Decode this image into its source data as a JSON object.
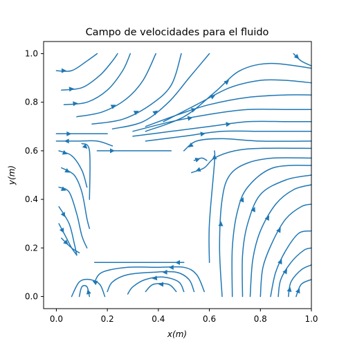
{
  "chart_data": {
    "type": "streamplot",
    "title": "Campo de velocidades para el fluido",
    "xlabel": "x(m)",
    "ylabel": "y(m)",
    "xlim": [
      -0.05,
      1.0
    ],
    "ylim": [
      -0.05,
      1.05
    ],
    "xticks": [
      0.0,
      0.2,
      0.4,
      0.6,
      0.8,
      1.0
    ],
    "yticks": [
      0.0,
      0.2,
      0.4,
      0.6,
      0.8,
      1.0
    ],
    "xtick_labels": [
      "0.0",
      "0.2",
      "0.4",
      "0.6",
      "0.8",
      "1.0"
    ],
    "ytick_labels": [
      "0.0",
      "0.2",
      "0.4",
      "0.6",
      "0.8",
      "1.0"
    ],
    "color": "#1f77b4",
    "grid": false,
    "obstacle": {
      "x": [
        0.14,
        0.6
      ],
      "y": [
        0.14,
        0.6
      ]
    },
    "streamlines": [
      {
        "points": [
          [
            0.0,
            0.93
          ],
          [
            0.06,
            0.93
          ],
          [
            0.12,
            0.97
          ],
          [
            0.16,
            1.0
          ]
        ],
        "arrow": 1
      },
      {
        "points": [
          [
            0.02,
            0.85
          ],
          [
            0.1,
            0.86
          ],
          [
            0.17,
            0.91
          ],
          [
            0.22,
            0.97
          ],
          [
            0.24,
            1.0
          ]
        ],
        "arrow": 1
      },
      {
        "points": [
          [
            0.03,
            0.79
          ],
          [
            0.12,
            0.8
          ],
          [
            0.2,
            0.85
          ],
          [
            0.26,
            0.93
          ],
          [
            0.29,
            1.0
          ]
        ],
        "arrow": 1
      },
      {
        "points": [
          [
            0.08,
            0.74
          ],
          [
            0.18,
            0.76
          ],
          [
            0.27,
            0.81
          ],
          [
            0.34,
            0.89
          ],
          [
            0.39,
            1.0
          ]
        ],
        "arrow": 2
      },
      {
        "points": [
          [
            0.14,
            0.71
          ],
          [
            0.26,
            0.73
          ],
          [
            0.37,
            0.79
          ],
          [
            0.45,
            0.87
          ],
          [
            0.49,
            1.0
          ]
        ],
        "arrow": 2
      },
      {
        "points": [
          [
            0.22,
            0.69
          ],
          [
            0.34,
            0.72
          ],
          [
            0.44,
            0.8
          ],
          [
            0.52,
            0.9
          ],
          [
            0.6,
            1.0
          ]
        ],
        "arrow": 2
      },
      {
        "points": [
          [
            0.35,
            0.68
          ],
          [
            0.5,
            0.74
          ],
          [
            0.62,
            0.84
          ],
          [
            0.72,
            0.93
          ],
          [
            0.84,
            0.96
          ],
          [
            1.0,
            0.94
          ]
        ],
        "arrow": 3
      },
      {
        "points": [
          [
            0.42,
            0.72
          ],
          [
            0.55,
            0.79
          ],
          [
            0.68,
            0.86
          ],
          [
            0.8,
            0.89
          ],
          [
            0.9,
            0.89
          ],
          [
            1.0,
            0.88
          ]
        ],
        "arrow": 2
      },
      {
        "points": [
          [
            0.35,
            0.7
          ],
          [
            0.48,
            0.75
          ],
          [
            0.6,
            0.79
          ],
          [
            0.75,
            0.82
          ],
          [
            0.9,
            0.83
          ],
          [
            1.0,
            0.83
          ]
        ],
        "arrow": 2
      },
      {
        "points": [
          [
            0.3,
            0.68
          ],
          [
            0.45,
            0.72
          ],
          [
            0.6,
            0.75
          ],
          [
            0.75,
            0.77
          ],
          [
            0.9,
            0.77
          ],
          [
            1.0,
            0.77
          ]
        ],
        "arrow": 2
      },
      {
        "points": [
          [
            0.3,
            0.66
          ],
          [
            0.45,
            0.68
          ],
          [
            0.6,
            0.7
          ],
          [
            0.75,
            0.72
          ],
          [
            0.9,
            0.72
          ],
          [
            1.0,
            0.72
          ]
        ],
        "arrow": 3
      },
      {
        "points": [
          [
            0.35,
            0.64
          ],
          [
            0.5,
            0.66
          ],
          [
            0.65,
            0.68
          ],
          [
            0.8,
            0.68
          ],
          [
            1.0,
            0.68
          ]
        ],
        "arrow": 2
      },
      {
        "points": [
          [
            0.0,
            0.67
          ],
          [
            0.1,
            0.67
          ],
          [
            0.2,
            0.67
          ]
        ],
        "arrow": 1
      },
      {
        "points": [
          [
            0.0,
            0.64
          ],
          [
            0.08,
            0.64
          ],
          [
            0.16,
            0.64
          ],
          [
            0.22,
            0.62
          ]
        ],
        "arrow": -1
      },
      {
        "points": [
          [
            0.16,
            0.6
          ],
          [
            0.28,
            0.6
          ],
          [
            0.45,
            0.6
          ]
        ],
        "arrow": 1
      },
      {
        "points": [
          [
            0.5,
            0.6
          ],
          [
            0.55,
            0.64
          ],
          [
            0.65,
            0.65
          ],
          [
            0.8,
            0.64
          ],
          [
            1.0,
            0.64
          ]
        ],
        "arrow": -1
      },
      {
        "points": [
          [
            0.53,
            0.51
          ],
          [
            0.58,
            0.53
          ],
          [
            0.62,
            0.57
          ],
          [
            0.7,
            0.6
          ],
          [
            0.8,
            0.61
          ],
          [
            1.0,
            0.61
          ]
        ],
        "arrow": -1
      },
      {
        "points": [
          [
            0.54,
            0.56
          ],
          [
            0.57,
            0.57
          ],
          [
            0.59,
            0.56
          ]
        ],
        "arrow": 1
      },
      {
        "points": [
          [
            0.01,
            0.6
          ],
          [
            0.06,
            0.58
          ],
          [
            0.1,
            0.52
          ],
          [
            0.12,
            0.45
          ]
        ],
        "arrow": 1
      },
      {
        "points": [
          [
            0.1,
            0.63
          ],
          [
            0.13,
            0.6
          ],
          [
            0.13,
            0.4
          ]
        ],
        "arrow": 1
      },
      {
        "points": [
          [
            0.02,
            0.53
          ],
          [
            0.07,
            0.5
          ],
          [
            0.1,
            0.43
          ],
          [
            0.12,
            0.32
          ],
          [
            0.13,
            0.28
          ]
        ],
        "arrow": 1
      },
      {
        "points": [
          [
            0.01,
            0.45
          ],
          [
            0.05,
            0.43
          ],
          [
            0.08,
            0.34
          ],
          [
            0.1,
            0.25
          ],
          [
            0.12,
            0.2
          ]
        ],
        "arrow": 1
      },
      {
        "points": [
          [
            0.01,
            0.37
          ],
          [
            0.05,
            0.3
          ],
          [
            0.07,
            0.22
          ],
          [
            0.08,
            0.17
          ]
        ],
        "arrow": 1
      },
      {
        "points": [
          [
            0.01,
            0.3
          ],
          [
            0.04,
            0.24
          ],
          [
            0.06,
            0.2
          ],
          [
            0.08,
            0.17
          ]
        ],
        "arrow": 1
      },
      {
        "points": [
          [
            0.02,
            0.24
          ],
          [
            0.06,
            0.2
          ],
          [
            0.09,
            0.18
          ]
        ],
        "arrow": 1
      },
      {
        "points": [
          [
            0.5,
            0.14
          ],
          [
            0.45,
            0.14
          ],
          [
            0.35,
            0.14
          ],
          [
            0.15,
            0.14
          ]
        ],
        "arrow": 1
      },
      {
        "points": [
          [
            0.58,
            0.02
          ],
          [
            0.55,
            0.09
          ],
          [
            0.5,
            0.12
          ],
          [
            0.4,
            0.12
          ],
          [
            0.28,
            0.12
          ],
          [
            0.18,
            0.1
          ],
          [
            0.15,
            0.06
          ]
        ],
        "arrow": 3
      },
      {
        "points": [
          [
            0.54,
            0.02
          ],
          [
            0.52,
            0.07
          ],
          [
            0.47,
            0.1
          ],
          [
            0.38,
            0.1
          ],
          [
            0.28,
            0.09
          ],
          [
            0.22,
            0.06
          ],
          [
            0.2,
            0.02
          ]
        ],
        "arrow": 3
      },
      {
        "points": [
          [
            0.5,
            0.02
          ],
          [
            0.48,
            0.06
          ],
          [
            0.42,
            0.08
          ],
          [
            0.35,
            0.07
          ],
          [
            0.3,
            0.04
          ],
          [
            0.28,
            0.01
          ]
        ],
        "arrow": 3
      },
      {
        "points": [
          [
            0.47,
            0.02
          ],
          [
            0.44,
            0.05
          ],
          [
            0.38,
            0.05
          ],
          [
            0.35,
            0.02
          ]
        ],
        "arrow": 2
      },
      {
        "points": [
          [
            0.19,
            0.0
          ],
          [
            0.17,
            0.05
          ],
          [
            0.13,
            0.07
          ],
          [
            0.09,
            0.06
          ],
          [
            0.06,
            0.0
          ]
        ],
        "arrow": 2
      },
      {
        "points": [
          [
            0.13,
            0.0
          ],
          [
            0.12,
            0.04
          ],
          [
            0.1,
            0.04
          ],
          [
            0.09,
            0.0
          ]
        ],
        "arrow": 1
      },
      {
        "points": [
          [
            0.62,
            0.6
          ],
          [
            0.62,
            0.55
          ],
          [
            0.6,
            0.3
          ],
          [
            0.6,
            0.14
          ]
        ],
        "arrow": -1
      },
      {
        "points": [
          [
            0.65,
            0.0
          ],
          [
            0.64,
            0.2
          ],
          [
            0.65,
            0.4
          ],
          [
            0.68,
            0.5
          ],
          [
            0.75,
            0.55
          ],
          [
            0.85,
            0.57
          ],
          [
            1.0,
            0.57
          ]
        ],
        "arrow": 2
      },
      {
        "points": [
          [
            0.69,
            0.0
          ],
          [
            0.69,
            0.2
          ],
          [
            0.71,
            0.35
          ],
          [
            0.75,
            0.45
          ],
          [
            0.85,
            0.53
          ],
          [
            1.0,
            0.54
          ]
        ],
        "arrow": 3
      },
      {
        "points": [
          [
            0.73,
            0.0
          ],
          [
            0.73,
            0.17
          ],
          [
            0.75,
            0.3
          ],
          [
            0.8,
            0.42
          ],
          [
            0.9,
            0.48
          ],
          [
            1.0,
            0.5
          ]
        ],
        "arrow": 3
      },
      {
        "points": [
          [
            0.76,
            0.0
          ],
          [
            0.77,
            0.15
          ],
          [
            0.8,
            0.27
          ],
          [
            0.86,
            0.38
          ],
          [
            0.93,
            0.44
          ],
          [
            1.0,
            0.46
          ]
        ],
        "arrow": 3
      },
      {
        "points": [
          [
            0.8,
            0.0
          ],
          [
            0.81,
            0.12
          ],
          [
            0.85,
            0.23
          ],
          [
            0.9,
            0.32
          ],
          [
            0.96,
            0.37
          ],
          [
            1.0,
            0.38
          ]
        ],
        "arrow": 3
      },
      {
        "points": [
          [
            0.84,
            0.0
          ],
          [
            0.86,
            0.1
          ],
          [
            0.9,
            0.19
          ],
          [
            0.95,
            0.26
          ],
          [
            1.0,
            0.27
          ]
        ],
        "arrow": 2
      },
      {
        "points": [
          [
            0.87,
            0.0
          ],
          [
            0.88,
            0.07
          ],
          [
            0.92,
            0.14
          ],
          [
            0.97,
            0.19
          ],
          [
            1.0,
            0.2
          ]
        ],
        "arrow": 2
      },
      {
        "points": [
          [
            0.91,
            0.0
          ],
          [
            0.92,
            0.06
          ],
          [
            0.96,
            0.11
          ],
          [
            1.0,
            0.13
          ]
        ],
        "arrow": 1
      },
      {
        "points": [
          [
            0.94,
            0.0
          ],
          [
            0.96,
            0.05
          ],
          [
            1.0,
            0.07
          ]
        ],
        "arrow": 1
      },
      {
        "points": [
          [
            0.93,
            1.0
          ],
          [
            0.96,
            0.97
          ],
          [
            1.0,
            0.95
          ]
        ],
        "arrow": 1
      }
    ]
  }
}
